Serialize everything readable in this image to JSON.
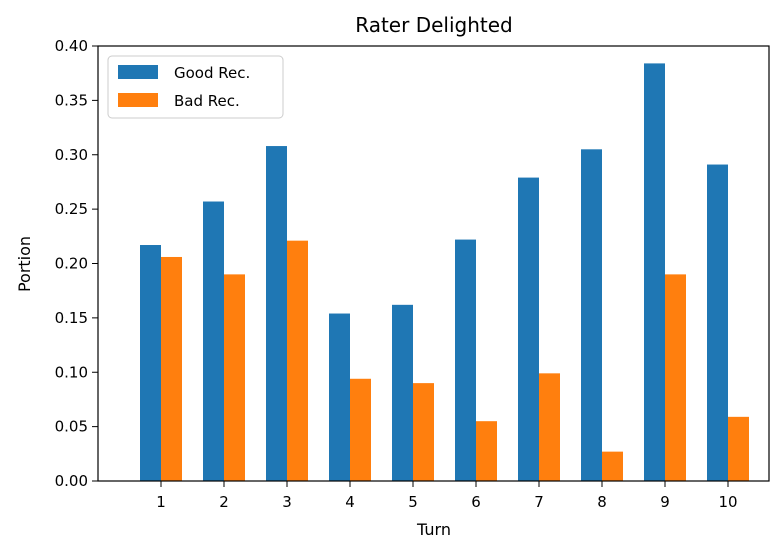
{
  "chart_data": {
    "type": "bar",
    "title": "Rater Delighted",
    "xlabel": "Turn",
    "ylabel": "Portion",
    "categories": [
      "1",
      "2",
      "3",
      "4",
      "5",
      "6",
      "7",
      "8",
      "9",
      "10"
    ],
    "series": [
      {
        "name": "Good Rec.",
        "color": "#1f77b4",
        "values": [
          0.217,
          0.257,
          0.308,
          0.154,
          0.162,
          0.222,
          0.279,
          0.305,
          0.384,
          0.291
        ]
      },
      {
        "name": "Bad Rec.",
        "color": "#ff7f0e",
        "values": [
          0.206,
          0.19,
          0.221,
          0.094,
          0.09,
          0.055,
          0.099,
          0.027,
          0.19,
          0.059
        ]
      }
    ],
    "ylim": [
      0,
      0.4
    ],
    "yticks": [
      "0.00",
      "0.05",
      "0.10",
      "0.15",
      "0.20",
      "0.25",
      "0.30",
      "0.35",
      "0.40"
    ],
    "grid": false,
    "legend_position": "top-left"
  }
}
